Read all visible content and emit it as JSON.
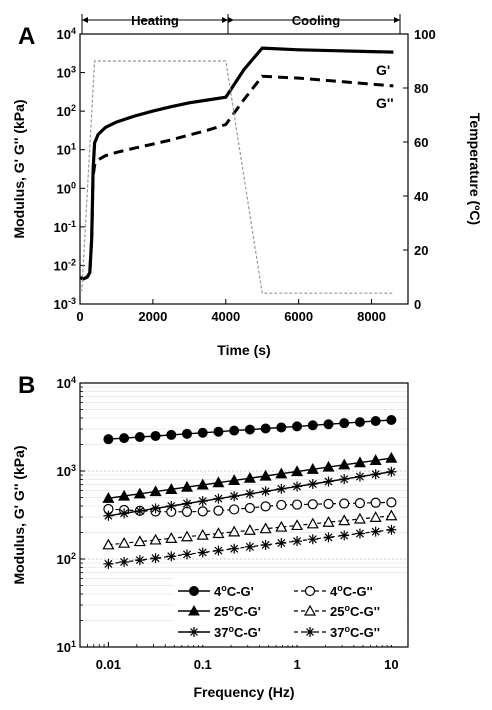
{
  "chart_data": [
    {
      "panel": "A",
      "type": "line",
      "xlabel": "Time (s)",
      "ylabel": "Modulus, G' G'' (kPa)",
      "y2label": "Temperature (ºC)",
      "xlim": [
        0,
        9000
      ],
      "ylim": [
        0.001,
        10000
      ],
      "yscale": "log",
      "y2lim": [
        0,
        100
      ],
      "x_ticks": [
        0,
        2000,
        4000,
        6000,
        8000
      ],
      "y_ticks": [
        {
          "value": 0.001,
          "base": "10",
          "exp": "-3"
        },
        {
          "value": 0.01,
          "base": "10",
          "exp": "-2"
        },
        {
          "value": 0.1,
          "base": "10",
          "exp": "-1"
        },
        {
          "value": 1,
          "base": "10",
          "exp": "0"
        },
        {
          "value": 10,
          "base": "10",
          "exp": "1"
        },
        {
          "value": 100,
          "base": "10",
          "exp": "2"
        },
        {
          "value": 1000,
          "base": "10",
          "exp": "3"
        },
        {
          "value": 10000,
          "base": "10",
          "exp": "4"
        }
      ],
      "y2_ticks": [
        0,
        20,
        40,
        60,
        80,
        100
      ],
      "phases": [
        {
          "label": "Heating",
          "x_start": 0,
          "x_end": 4000
        },
        {
          "label": "Cooling",
          "x_start": 4000,
          "x_end": 8800
        }
      ],
      "series": [
        {
          "name": "G'",
          "axis": "left",
          "style": "solid",
          "x": [
            0,
            100,
            200,
            270,
            320,
            360,
            400,
            500,
            700,
            1000,
            1500,
            2000,
            2500,
            3000,
            3500,
            4000,
            4500,
            5000,
            6000,
            7000,
            8000,
            8600
          ],
          "y": [
            0.0048,
            0.0045,
            0.005,
            0.0065,
            0.05,
            3.0,
            15,
            25,
            38,
            52,
            75,
            100,
            130,
            165,
            195,
            230,
            1200,
            4300,
            3900,
            3700,
            3500,
            3400
          ]
        },
        {
          "name": "G''",
          "axis": "left",
          "style": "dashed",
          "x": [
            0,
            100,
            200,
            270,
            320,
            360,
            400,
            500,
            700,
            1000,
            1500,
            2000,
            2500,
            3000,
            3500,
            4000,
            4500,
            5000,
            6000,
            7000,
            8000,
            8600
          ],
          "y": [
            0.0048,
            0.0045,
            0.005,
            0.0065,
            0.05,
            2.0,
            4.0,
            5.5,
            7.0,
            8.5,
            11,
            14,
            18,
            24,
            32,
            45,
            200,
            800,
            720,
            600,
            500,
            450
          ]
        },
        {
          "name": "",
          "axis": "right",
          "style": "dotted",
          "x": [
            0,
            50,
            400,
            4000,
            5000,
            8600
          ],
          "y": [
            5,
            5,
            90,
            90,
            4,
            4
          ]
        }
      ]
    },
    {
      "panel": "B",
      "type": "scatter",
      "xlabel": "Frequency (Hz)",
      "ylabel": "Modulus, G' G'' (kPa)",
      "xscale": "log",
      "yscale": "log",
      "xlim": [
        0.005,
        15
      ],
      "ylim": [
        10,
        10000
      ],
      "x_ticks": [
        {
          "value": 0.01,
          "label": "0.01"
        },
        {
          "value": 0.1,
          "label": "0.1"
        },
        {
          "value": 1,
          "label": "1"
        },
        {
          "value": 10,
          "label": "10"
        }
      ],
      "y_ticks": [
        {
          "value": 10,
          "base": "10",
          "exp": "1"
        },
        {
          "value": 100,
          "base": "10",
          "exp": "2"
        },
        {
          "value": 1000,
          "base": "10",
          "exp": "3"
        },
        {
          "value": 10000,
          "base": "10",
          "exp": "4"
        }
      ],
      "grid": true,
      "legend_placement": "lower-right",
      "n_points": 19,
      "f_range": [
        0.01,
        10
      ],
      "series": [
        {
          "name_prefix": "4",
          "name_suffix": "C-G'",
          "marker": "circle-filled",
          "line": "solid",
          "y_start": 2300,
          "y_end": 3800
        },
        {
          "name_prefix": "4",
          "name_suffix": "C-G''",
          "marker": "circle-open",
          "line": "dashed",
          "y_start": 370,
          "y_end": 440,
          "y_min": 345
        },
        {
          "name_prefix": "25",
          "name_suffix": "C-G'",
          "marker": "triangle-filled",
          "line": "solid",
          "y_start": 490,
          "y_end": 1400
        },
        {
          "name_prefix": "25",
          "name_suffix": "C-G''",
          "marker": "triangle-open",
          "line": "dashed",
          "y_start": 145,
          "y_end": 310
        },
        {
          "name_prefix": "37",
          "name_suffix": "C-G'",
          "marker": "star",
          "line": "solid",
          "y_start": 310,
          "y_end": 980
        },
        {
          "name_prefix": "37",
          "name_suffix": "C-G''",
          "marker": "star",
          "line": "dashed",
          "y_start": 88,
          "y_end": 215
        }
      ]
    }
  ]
}
